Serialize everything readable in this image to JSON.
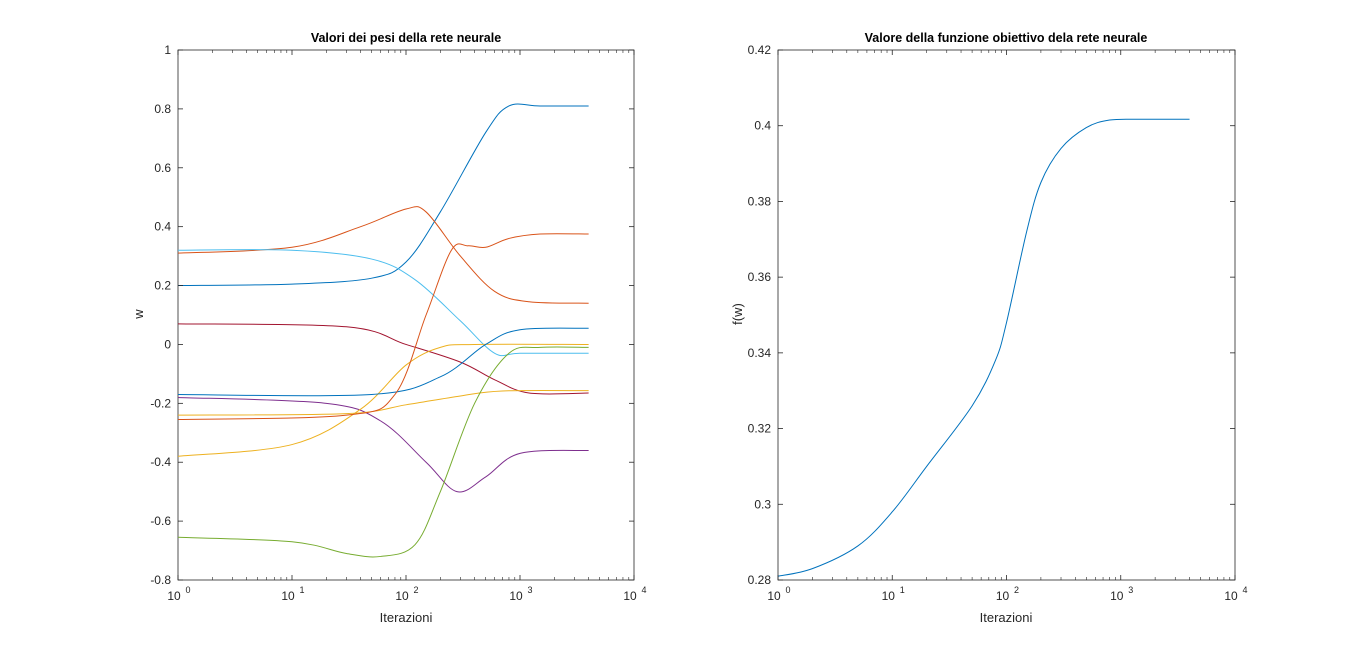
{
  "chart_data": [
    {
      "type": "line",
      "title": "Valori dei pesi della rete neurale",
      "xlabel": "Iterazioni",
      "ylabel": "w",
      "xscale": "log",
      "xlim": [
        1,
        10000
      ],
      "ylim": [
        -0.8,
        1
      ],
      "grid": false,
      "legend": "none",
      "xticks": [
        1,
        10,
        100,
        1000,
        10000
      ],
      "xtick_labels": [
        {
          "base": "10",
          "exp": "0"
        },
        {
          "base": "10",
          "exp": "1"
        },
        {
          "base": "10",
          "exp": "2"
        },
        {
          "base": "10",
          "exp": "3"
        },
        {
          "base": "10",
          "exp": "4"
        }
      ],
      "yticks": [
        -0.8,
        -0.6,
        -0.4,
        -0.2,
        0,
        0.2,
        0.4,
        0.6,
        0.8,
        1
      ],
      "ytick_labels": [
        "-0.8",
        "-0.6",
        "-0.4",
        "-0.2",
        "0",
        "0.2",
        "0.4",
        "0.6",
        "0.8",
        "1"
      ],
      "series": [
        {
          "color": "#0072BD",
          "points": [
            [
              1,
              0.2
            ],
            [
              10,
              0.205
            ],
            [
              50,
              0.225
            ],
            [
              100,
              0.28
            ],
            [
              200,
              0.45
            ],
            [
              500,
              0.72
            ],
            [
              800,
              0.81
            ],
            [
              1500,
              0.81
            ],
            [
              4000,
              0.81
            ]
          ]
        },
        {
          "color": "#D95319",
          "points": [
            [
              1,
              0.31
            ],
            [
              10,
              0.33
            ],
            [
              40,
              0.4
            ],
            [
              100,
              0.46
            ],
            [
              150,
              0.45
            ],
            [
              300,
              0.3
            ],
            [
              600,
              0.18
            ],
            [
              1200,
              0.145
            ],
            [
              4000,
              0.14
            ]
          ]
        },
        {
          "color": "#4DBEEE",
          "points": [
            [
              1,
              0.32
            ],
            [
              10,
              0.32
            ],
            [
              50,
              0.29
            ],
            [
              120,
              0.22
            ],
            [
              300,
              0.08
            ],
            [
              600,
              -0.03
            ],
            [
              1000,
              -0.03
            ],
            [
              4000,
              -0.03
            ]
          ]
        },
        {
          "color": "#7E2F8E",
          "points": [
            [
              1,
              -0.18
            ],
            [
              20,
              -0.2
            ],
            [
              60,
              -0.26
            ],
            [
              150,
              -0.4
            ],
            [
              280,
              -0.5
            ],
            [
              500,
              -0.45
            ],
            [
              1000,
              -0.37
            ],
            [
              4000,
              -0.36
            ]
          ]
        },
        {
          "color": "#A2142F",
          "points": [
            [
              1,
              0.07
            ],
            [
              30,
              0.06
            ],
            [
              100,
              0.0
            ],
            [
              300,
              -0.06
            ],
            [
              600,
              -0.12
            ],
            [
              1200,
              -0.165
            ],
            [
              4000,
              -0.165
            ]
          ]
        },
        {
          "color": "#EDB120",
          "points": [
            [
              1,
              -0.24
            ],
            [
              30,
              -0.235
            ],
            [
              100,
              -0.205
            ],
            [
              300,
              -0.175
            ],
            [
              700,
              -0.158
            ],
            [
              4000,
              -0.157
            ]
          ]
        },
        {
          "color": "#EDB120",
          "points": [
            [
              1,
              -0.38
            ],
            [
              10,
              -0.34
            ],
            [
              40,
              -0.22
            ],
            [
              100,
              -0.07
            ],
            [
              200,
              -0.01
            ],
            [
              400,
              0.0
            ],
            [
              4000,
              0.0
            ]
          ]
        },
        {
          "color": "#0072BD",
          "points": [
            [
              1,
              -0.17
            ],
            [
              50,
              -0.17
            ],
            [
              200,
              -0.11
            ],
            [
              500,
              0.0
            ],
            [
              1000,
              0.05
            ],
            [
              4000,
              0.055
            ]
          ]
        },
        {
          "color": "#77AC30",
          "points": [
            [
              1,
              -0.655
            ],
            [
              10,
              -0.67
            ],
            [
              30,
              -0.71
            ],
            [
              60,
              -0.72
            ],
            [
              120,
              -0.68
            ],
            [
              200,
              -0.5
            ],
            [
              400,
              -0.2
            ],
            [
              800,
              -0.03
            ],
            [
              1500,
              -0.01
            ],
            [
              4000,
              -0.01
            ]
          ]
        },
        {
          "color": "#D95319",
          "points": [
            [
              1,
              -0.255
            ],
            [
              30,
              -0.24
            ],
            [
              80,
              -0.17
            ],
            [
              150,
              0.1
            ],
            [
              250,
              0.32
            ],
            [
              350,
              0.335
            ],
            [
              500,
              0.33
            ],
            [
              800,
              0.36
            ],
            [
              1500,
              0.375
            ],
            [
              4000,
              0.375
            ]
          ]
        }
      ]
    },
    {
      "type": "line",
      "title": "Valore della funzione obiettivo dela rete neurale",
      "xlabel": "Iterazioni",
      "ylabel": "f(w)",
      "xscale": "log",
      "xlim": [
        1,
        10000
      ],
      "ylim": [
        0.28,
        0.42
      ],
      "grid": false,
      "legend": "none",
      "xticks": [
        1,
        10,
        100,
        1000,
        10000
      ],
      "xtick_labels": [
        {
          "base": "10",
          "exp": "0"
        },
        {
          "base": "10",
          "exp": "1"
        },
        {
          "base": "10",
          "exp": "2"
        },
        {
          "base": "10",
          "exp": "3"
        },
        {
          "base": "10",
          "exp": "4"
        }
      ],
      "yticks": [
        0.28,
        0.3,
        0.32,
        0.34,
        0.36,
        0.38,
        0.4,
        0.42
      ],
      "ytick_labels": [
        "0.28",
        "0.3",
        "0.32",
        "0.34",
        "0.36",
        "0.38",
        "0.4",
        "0.42"
      ],
      "series": [
        {
          "color": "#0072BD",
          "points": [
            [
              1,
              0.281
            ],
            [
              2,
              0.283
            ],
            [
              5,
              0.289
            ],
            [
              10,
              0.298
            ],
            [
              20,
              0.31
            ],
            [
              50,
              0.326
            ],
            [
              80,
              0.338
            ],
            [
              100,
              0.348
            ],
            [
              150,
              0.372
            ],
            [
              200,
              0.385
            ],
            [
              300,
              0.394
            ],
            [
              500,
              0.3995
            ],
            [
              800,
              0.4015
            ],
            [
              1500,
              0.4017
            ],
            [
              4000,
              0.4017
            ]
          ]
        }
      ]
    }
  ]
}
